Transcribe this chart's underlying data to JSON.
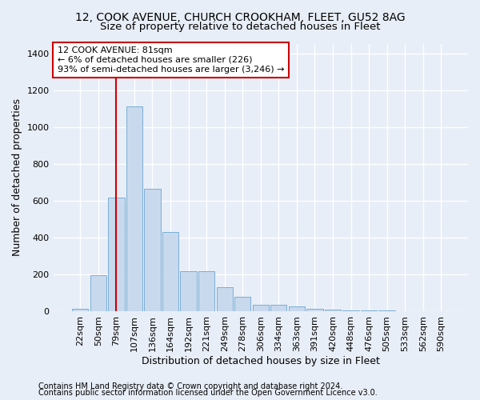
{
  "title1": "12, COOK AVENUE, CHURCH CROOKHAM, FLEET, GU52 8AG",
  "title2": "Size of property relative to detached houses in Fleet",
  "xlabel": "Distribution of detached houses by size in Fleet",
  "ylabel": "Number of detached properties",
  "categories": [
    "22sqm",
    "50sqm",
    "79sqm",
    "107sqm",
    "136sqm",
    "164sqm",
    "192sqm",
    "221sqm",
    "249sqm",
    "278sqm",
    "306sqm",
    "334sqm",
    "363sqm",
    "391sqm",
    "420sqm",
    "448sqm",
    "476sqm",
    "505sqm",
    "533sqm",
    "562sqm",
    "590sqm"
  ],
  "values": [
    15,
    195,
    615,
    1110,
    665,
    430,
    215,
    215,
    130,
    80,
    35,
    35,
    28,
    15,
    10,
    5,
    5,
    5,
    0,
    0,
    0
  ],
  "bar_color": "#c8d9ee",
  "bar_edge_color": "#7aaed4",
  "vline_x_idx": 2,
  "vline_color": "#cc0000",
  "annotation_text": "12 COOK AVENUE: 81sqm\n← 6% of detached houses are smaller (226)\n93% of semi-detached houses are larger (3,246) →",
  "annotation_box_color": "#ffffff",
  "annotation_box_edgecolor": "#cc0000",
  "ylim": [
    0,
    1450
  ],
  "yticks": [
    0,
    200,
    400,
    600,
    800,
    1000,
    1200,
    1400
  ],
  "footer1": "Contains HM Land Registry data © Crown copyright and database right 2024.",
  "footer2": "Contains public sector information licensed under the Open Government Licence v3.0.",
  "bg_color": "#e8eef7",
  "plot_bg_color": "#e8eef7",
  "grid_color": "#ffffff",
  "title1_fontsize": 10,
  "title2_fontsize": 9.5,
  "ylabel_fontsize": 9,
  "xlabel_fontsize": 9,
  "tick_fontsize": 8,
  "annot_fontsize": 8,
  "footer_fontsize": 7
}
